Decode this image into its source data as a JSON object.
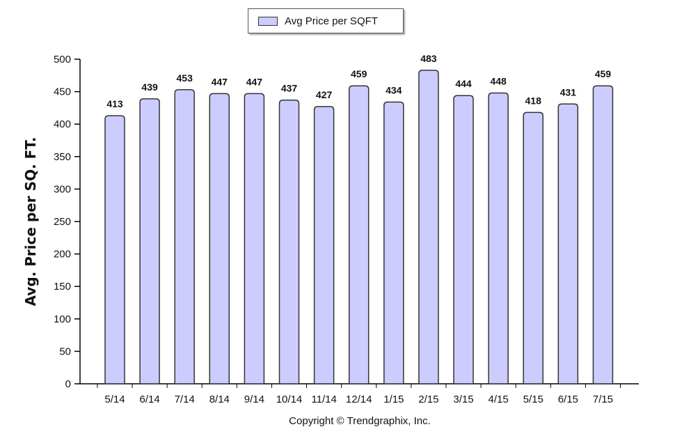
{
  "legend": {
    "label": "Avg Price per SQFT"
  },
  "footer": {
    "copyright": "Copyright © Trendgraphix, Inc."
  },
  "colors": {
    "bar_fill": "#ccccff",
    "bar_stroke": "#333333"
  },
  "chart_data": {
    "type": "bar",
    "categories": [
      "5/14",
      "6/14",
      "7/14",
      "8/14",
      "9/14",
      "10/14",
      "11/14",
      "12/14",
      "1/15",
      "2/15",
      "3/15",
      "4/15",
      "5/15",
      "6/15",
      "7/15"
    ],
    "series": [
      {
        "name": "Avg Price per SQFT",
        "values": [
          413,
          439,
          453,
          447,
          447,
          437,
          427,
          459,
          434,
          483,
          444,
          448,
          418,
          431,
          459
        ]
      }
    ],
    "ylabel": "Avg. Price per SQ. FT.",
    "xlabel": "",
    "ylim": [
      0,
      500
    ],
    "yticks": [
      0,
      50,
      100,
      150,
      200,
      250,
      300,
      350,
      400,
      450,
      500
    ],
    "grid": false,
    "legend_position": "top-center"
  }
}
